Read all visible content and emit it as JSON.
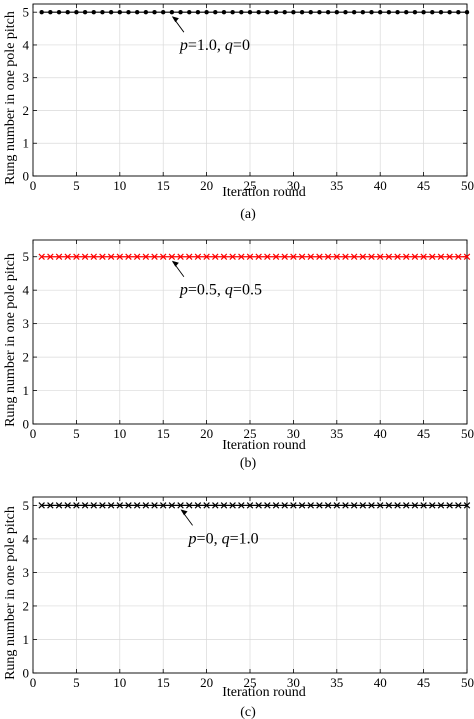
{
  "chart_data": [
    {
      "type": "line",
      "caption": "(a)",
      "xlabel": "Iteration round",
      "ylabel": "Rung number in one pole pitch",
      "xlim": [
        0,
        50
      ],
      "ylim": [
        0,
        5.25
      ],
      "xticks": [
        "0",
        "5",
        "10",
        "15",
        "20",
        "25",
        "30",
        "35",
        "40",
        "45",
        "50"
      ],
      "yticks": [
        "0",
        "1",
        "2",
        "3",
        "4",
        "5"
      ],
      "grid": true,
      "annotation": {
        "p": "1.0",
        "q": "0",
        "x": 16,
        "y": 5
      },
      "series": [
        {
          "marker": "dot",
          "color": "#000000",
          "x": [
            1,
            2,
            3,
            4,
            5,
            6,
            7,
            8,
            9,
            10,
            11,
            12,
            13,
            14,
            15,
            16,
            17,
            18,
            19,
            20,
            21,
            22,
            23,
            24,
            25,
            26,
            27,
            28,
            29,
            30,
            31,
            32,
            33,
            34,
            35,
            36,
            37,
            38,
            39,
            40,
            41,
            42,
            43,
            44,
            45,
            46,
            47,
            48,
            49,
            50
          ],
          "values": [
            5,
            5,
            5,
            5,
            5,
            5,
            5,
            5,
            5,
            5,
            5,
            5,
            5,
            5,
            5,
            5,
            5,
            5,
            5,
            5,
            5,
            5,
            5,
            5,
            5,
            5,
            5,
            5,
            5,
            5,
            5,
            5,
            5,
            5,
            5,
            5,
            5,
            5,
            5,
            5,
            5,
            5,
            5,
            5,
            5,
            5,
            5,
            5,
            5,
            5
          ]
        }
      ]
    },
    {
      "type": "line",
      "caption": "(b)",
      "xlabel": "Iteration round",
      "ylabel": "Rung number in one pole pitch",
      "xlim": [
        0,
        50
      ],
      "ylim": [
        0,
        5.5
      ],
      "xticks": [
        "0",
        "5",
        "10",
        "15",
        "20",
        "25",
        "30",
        "35",
        "40",
        "45",
        "50"
      ],
      "yticks": [
        "0",
        "1",
        "2",
        "3",
        "4",
        "5"
      ],
      "grid": true,
      "annotation": {
        "p": "0.5",
        "q": "0.5",
        "x": 16,
        "y": 5
      },
      "series": [
        {
          "marker": "x",
          "color": "#ff0000",
          "x": [
            1,
            2,
            3,
            4,
            5,
            6,
            7,
            8,
            9,
            10,
            11,
            12,
            13,
            14,
            15,
            16,
            17,
            18,
            19,
            20,
            21,
            22,
            23,
            24,
            25,
            26,
            27,
            28,
            29,
            30,
            31,
            32,
            33,
            34,
            35,
            36,
            37,
            38,
            39,
            40,
            41,
            42,
            43,
            44,
            45,
            46,
            47,
            48,
            49,
            50
          ],
          "values": [
            5,
            5,
            5,
            5,
            5,
            5,
            5,
            5,
            5,
            5,
            5,
            5,
            5,
            5,
            5,
            5,
            5,
            5,
            5,
            5,
            5,
            5,
            5,
            5,
            5,
            5,
            5,
            5,
            5,
            5,
            5,
            5,
            5,
            5,
            5,
            5,
            5,
            5,
            5,
            5,
            5,
            5,
            5,
            5,
            5,
            5,
            5,
            5,
            5,
            5
          ]
        }
      ]
    },
    {
      "type": "line",
      "caption": "(c)",
      "xlabel": "Iteration round",
      "ylabel": "Rung number in one pole pitch",
      "xlim": [
        0,
        50
      ],
      "ylim": [
        0,
        5.25
      ],
      "xticks": [
        "0",
        "5",
        "10",
        "15",
        "20",
        "25",
        "30",
        "35",
        "40",
        "45",
        "50"
      ],
      "yticks": [
        "0",
        "1",
        "2",
        "3",
        "4",
        "5"
      ],
      "grid": true,
      "annotation": {
        "p": "0",
        "q": "1.0",
        "x": 17,
        "y": 5
      },
      "series": [
        {
          "marker": "x",
          "color": "#000000",
          "x": [
            1,
            2,
            3,
            4,
            5,
            6,
            7,
            8,
            9,
            10,
            11,
            12,
            13,
            14,
            15,
            16,
            17,
            18,
            19,
            20,
            21,
            22,
            23,
            24,
            25,
            26,
            27,
            28,
            29,
            30,
            31,
            32,
            33,
            34,
            35,
            36,
            37,
            38,
            39,
            40,
            41,
            42,
            43,
            44,
            45,
            46,
            47,
            48,
            49,
            50
          ],
          "values": [
            5,
            5,
            5,
            5,
            5,
            5,
            5,
            5,
            5,
            5,
            5,
            5,
            5,
            5,
            5,
            5,
            5,
            5,
            5,
            5,
            5,
            5,
            5,
            5,
            5,
            5,
            5,
            5,
            5,
            5,
            5,
            5,
            5,
            5,
            5,
            5,
            5,
            5,
            5,
            5,
            5,
            5,
            5,
            5,
            5,
            5,
            5,
            5,
            5,
            5
          ]
        }
      ]
    }
  ]
}
